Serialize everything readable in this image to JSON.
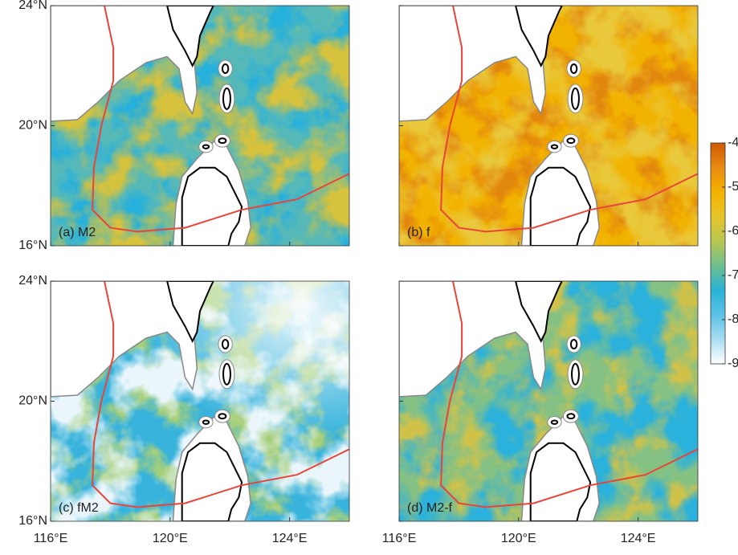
{
  "map": {
    "panels": [
      {
        "label": "(a) M2"
      },
      {
        "label": "(b) f"
      },
      {
        "label": "(c) fM2"
      },
      {
        "label": "(d) M2-f"
      }
    ],
    "lon_axis": {
      "lim": [
        116,
        126
      ],
      "ticks": [
        {
          "value": 116,
          "label": "116°E"
        },
        {
          "value": 120,
          "label": "120°E"
        },
        {
          "value": 124,
          "label": "124°E"
        }
      ]
    },
    "lat_axis": {
      "lim": [
        16,
        24
      ],
      "ticks": [
        {
          "value": 16,
          "label": "16°N"
        },
        {
          "value": 20,
          "label": "20°N"
        },
        {
          "value": 24,
          "label": "24°N"
        }
      ]
    },
    "colorbar": {
      "lim": [
        -9,
        -4
      ],
      "ticks": [
        -4,
        -5,
        -6,
        -7,
        -8,
        -9
      ],
      "colors": [
        "#cf5a00",
        "#e98a10",
        "#f5b300",
        "#e6c52a",
        "#b9c650",
        "#6fbf8e",
        "#28b2d6",
        "#5cc3e6",
        "#a9dcf1",
        "#ffffff"
      ]
    }
  }
}
